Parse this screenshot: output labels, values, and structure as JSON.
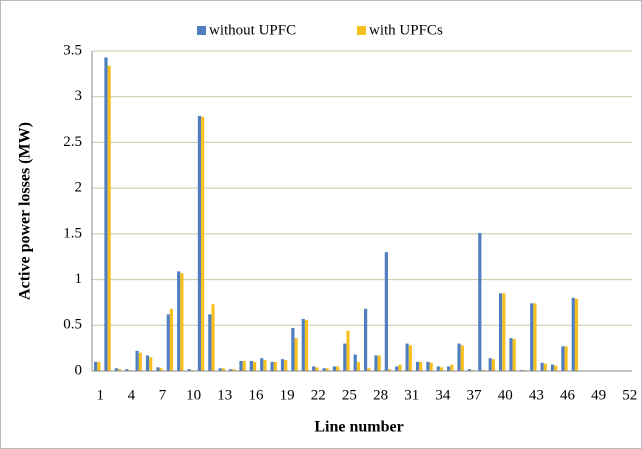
{
  "chart_data": {
    "type": "bar",
    "categories": [
      "1",
      null,
      null,
      "4",
      null,
      null,
      "7",
      null,
      null,
      "10",
      null,
      null,
      "13",
      null,
      null,
      "16",
      null,
      null,
      "19",
      null,
      null,
      "22",
      null,
      null,
      "25",
      null,
      null,
      "28",
      null,
      null,
      "31",
      null,
      null,
      "34",
      null,
      null,
      "37",
      null,
      null,
      "40",
      null,
      null,
      "43",
      null,
      null,
      "46",
      null,
      null,
      "49",
      null,
      null,
      "52"
    ],
    "series": [
      {
        "name": "without UPFC",
        "color": "#4f7fc0",
        "values": [
          0.1,
          3.43,
          0.03,
          0.02,
          0.22,
          0.17,
          0.04,
          0.62,
          1.09,
          0.02,
          2.79,
          0.62,
          0.03,
          0.02,
          0.11,
          0.11,
          0.14,
          0.1,
          0.13,
          0.47,
          0.57,
          0.05,
          0.03,
          0.05,
          0.3,
          0.18,
          0.68,
          0.17,
          1.3,
          0.05,
          0.3,
          0.1,
          0.1,
          0.05,
          0.05,
          0.3,
          0.02,
          1.51,
          0.14,
          0.85,
          0.36,
          0.01,
          0.74,
          0.09,
          0.07,
          0.27,
          0.8,
          0,
          0,
          0,
          0,
          0
        ]
      },
      {
        "name": "with UPFCs",
        "color": "#f5c020",
        "values": [
          0.1,
          3.34,
          0.02,
          0.01,
          0.2,
          0.15,
          0.03,
          0.68,
          1.07,
          0.01,
          2.78,
          0.73,
          0.03,
          0.02,
          0.11,
          0.1,
          0.12,
          0.1,
          0.12,
          0.36,
          0.56,
          0.04,
          0.03,
          0.05,
          0.44,
          0.1,
          0.03,
          0.17,
          0.02,
          0.07,
          0.28,
          0.1,
          0.09,
          0.04,
          0.07,
          0.28,
          0.01,
          0.01,
          0.13,
          0.85,
          0.35,
          0.01,
          0.74,
          0.08,
          0.06,
          0.27,
          0.79,
          0,
          0,
          0,
          0,
          0
        ]
      }
    ],
    "xlabel": "Line number",
    "ylabel": "Active power losses (MW)",
    "ylim": [
      0,
      3.5
    ],
    "yticks": [
      0,
      0.5,
      1,
      1.5,
      2,
      2.5,
      3,
      3.5
    ],
    "grid": true
  }
}
